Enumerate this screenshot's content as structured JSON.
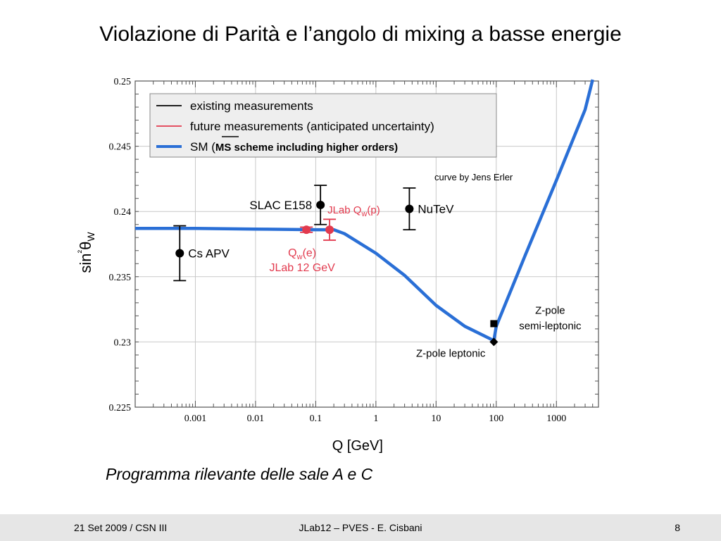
{
  "slide": {
    "title": "Violazione di Parità e l’angolo di mixing a basse energie",
    "subtitle": "Programma rilevante delle sale A e C",
    "footer_left": "21 Set 2009 / CSN III",
    "footer_center": "JLab12 – PVES - E. Cisbani",
    "footer_right": "8"
  },
  "chart_data": {
    "type": "scatter",
    "xlabel": "Q [GeV]",
    "ylabel": "sin²θW",
    "xscale": "log",
    "xlim": [
      0.0001,
      5000
    ],
    "ylim": [
      0.225,
      0.25
    ],
    "x_ticks": [
      "0.001",
      "0.01",
      "0.1",
      "1",
      "10",
      "100",
      "1000"
    ],
    "y_ticks": [
      "0.225",
      "0.23",
      "0.235",
      "0.24",
      "0.245",
      "0.25"
    ],
    "legend_position": "top-left",
    "legend": [
      {
        "label": "existing measurements",
        "color": "#000000"
      },
      {
        "label": "future measurements (anticipated uncertainty)",
        "color": "#e23a4e"
      },
      {
        "label": "SM (",
        "label_bold": "MS scheme including higher orders)",
        "color": "#2a6fd6"
      }
    ],
    "annotation": "curve by Jens Erler",
    "sm_curve": {
      "color": "#2a6fd6",
      "x": [
        0.0001,
        0.001,
        0.01,
        0.1,
        0.2,
        0.3,
        1,
        3,
        10,
        30,
        91.2,
        100,
        300,
        1000,
        3000,
        4000
      ],
      "y": [
        0.2387,
        0.2387,
        0.23865,
        0.2386,
        0.2386,
        0.2383,
        0.2368,
        0.2351,
        0.2328,
        0.2312,
        0.2301,
        0.2312,
        0.2366,
        0.2424,
        0.2478,
        0.2501
      ]
    },
    "points": [
      {
        "label": "Cs APV",
        "x": 0.00055,
        "y": 0.2368,
        "yerr": 0.0021,
        "color": "#000000",
        "marker": "circle"
      },
      {
        "label": "SLAC E158",
        "x": 0.12,
        "y": 0.2405,
        "yerr": 0.0015,
        "color": "#000000",
        "marker": "circle"
      },
      {
        "label": "NuTeV",
        "x": 3.6,
        "y": 0.2402,
        "yerr": 0.0016,
        "color": "#000000",
        "marker": "circle"
      },
      {
        "label": "Qw(e)",
        "label2": "JLab 12 GeV",
        "x": 0.07,
        "y": 0.2386,
        "yerr": 0.0002,
        "color": "#e23a4e",
        "marker": "circle"
      },
      {
        "label": "JLab Qw(p)",
        "x": 0.17,
        "y": 0.2386,
        "yerr": 0.0008,
        "color": "#e23a4e",
        "marker": "circle"
      },
      {
        "label": "Z-pole semi-leptonic",
        "x": 91.2,
        "y": 0.2314,
        "yerr": 0,
        "color": "#000000",
        "marker": "square"
      },
      {
        "label": "Z-pole leptonic",
        "x": 91.2,
        "y": 0.23,
        "yerr": 0,
        "color": "#000000",
        "marker": "diamond"
      }
    ]
  }
}
